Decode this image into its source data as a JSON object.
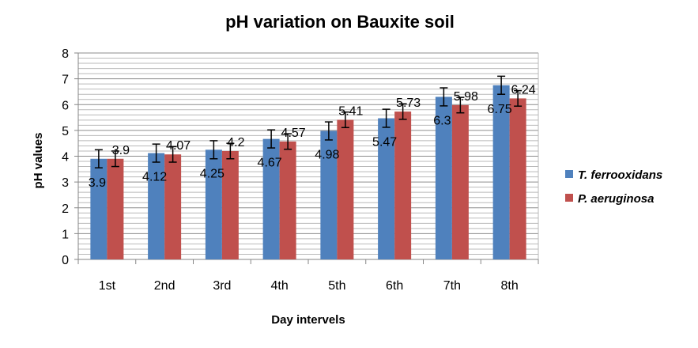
{
  "chart_data": {
    "type": "bar",
    "title": "pH variation on Bauxite soil",
    "xlabel": "Day intervels",
    "ylabel": "pH values",
    "categories": [
      "1st",
      "2nd",
      "3rd",
      "4th",
      "5th",
      "6th",
      "7th",
      "8th"
    ],
    "ylim": [
      0,
      8
    ],
    "yticks": [
      "0",
      "1",
      "2",
      "3",
      "4",
      "5",
      "6",
      "7",
      "8"
    ],
    "grid": true,
    "legend_position": "right",
    "error_bars": true,
    "series": [
      {
        "name": "T. ferrooxidans",
        "color": "#4f81bd",
        "values": [
          3.9,
          4.12,
          4.25,
          4.67,
          4.98,
          5.47,
          6.3,
          6.75
        ],
        "labels": [
          "3.9",
          "4.12",
          "4.25",
          "4.67",
          "4.98",
          "5.47",
          "6.3",
          "6.75"
        ],
        "errors": [
          0.35,
          0.35,
          0.35,
          0.35,
          0.35,
          0.35,
          0.35,
          0.35
        ]
      },
      {
        "name": "P. aeruginosa",
        "color": "#c0504d",
        "values": [
          3.9,
          4.07,
          4.2,
          4.57,
          5.41,
          5.73,
          5.98,
          6.24
        ],
        "labels": [
          "3.9",
          "4.07",
          "4.2",
          "4.57",
          "5.41",
          "5.73",
          "5.98",
          "6.24"
        ],
        "errors": [
          0.3,
          0.3,
          0.3,
          0.3,
          0.3,
          0.3,
          0.3,
          0.3
        ]
      }
    ]
  }
}
